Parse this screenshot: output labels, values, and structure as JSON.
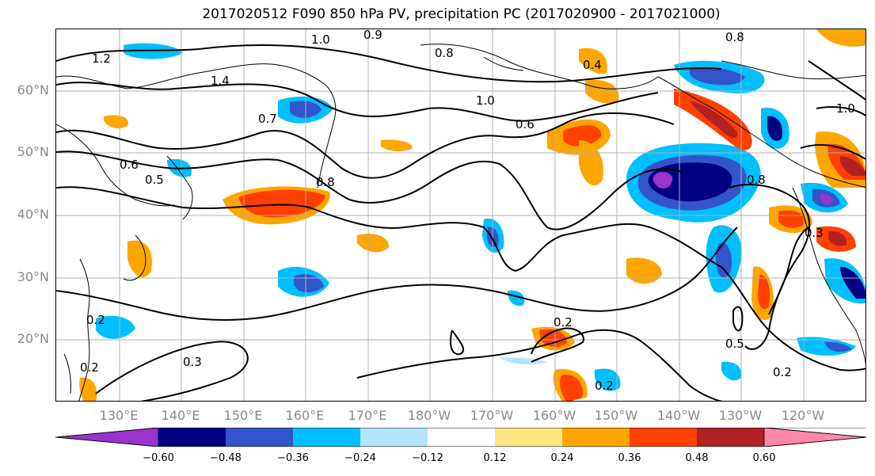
{
  "title": "2017020512 F090 850 hPa PV, precipitation PC (2017020900 - 2017021000)",
  "map": {
    "lat_labels": [
      "60°N",
      "50°N",
      "40°N",
      "30°N",
      "20°N"
    ],
    "lon_labels": [
      "130°E",
      "140°E",
      "150°E",
      "160°E",
      "170°E",
      "180°W",
      "170°W",
      "160°W",
      "150°W",
      "140°W",
      "130°W",
      "120°W"
    ],
    "contour_labels": [
      "1.0",
      "0.9",
      "0.8",
      "1.2",
      "1.4",
      "0.7",
      "0.6",
      "0.5",
      "0.8",
      "0.4",
      "1.0",
      "0.6",
      "0.8",
      "1.0",
      "0.8",
      "0.3",
      "0.2",
      "0.5",
      "0.3",
      "0.2",
      "0.2",
      "0.2",
      "0.2"
    ],
    "colors": {
      "gridline": "#b0b0b0",
      "contour": "#000000",
      "coastline": "#000000"
    }
  },
  "colorbar": {
    "ticks": [
      "−0.60",
      "−0.48",
      "−0.36",
      "−0.24",
      "−0.12",
      "0.12",
      "0.24",
      "0.36",
      "0.48",
      "0.60"
    ],
    "colors": [
      "#9933cc",
      "#000080",
      "#3355cc",
      "#00bfff",
      "#b3e5ff",
      "#ffffff",
      "#ffe680",
      "#ffa500",
      "#ff4000",
      "#b22222",
      "#ff88aa"
    ]
  }
}
